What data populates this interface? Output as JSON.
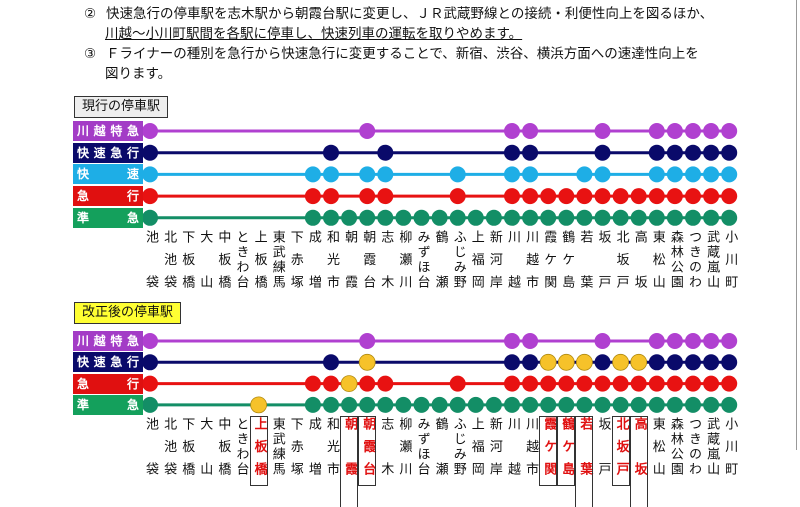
{
  "document": {
    "paragraphs": [
      {
        "num": "②",
        "lines": [
          "快速急行の停車駅を志木駅から朝霞台駅に変更し、ＪＲ武蔵野線との接続・利便性向上を図るほか、",
          "川越～小川町駅間を各駅に停車し、快速列車の運転を取りやめます。"
        ]
      },
      {
        "num": "③",
        "lines": [
          "Ｆライナーの種別を急行から快速急行に変更することで、新宿、渋谷、横浜方面への速達性向上を",
          "図ります。"
        ]
      }
    ]
  },
  "stations": [
    "池袋",
    "北池袋",
    "下板橋",
    "大山",
    "中板橋",
    "ときわ台",
    "上板橋",
    "東武練馬",
    "下赤塚",
    "成増",
    "和光市",
    "朝霞",
    "朝霞台",
    "志木",
    "柳瀬川",
    "みずほ台",
    "鶴瀬",
    "ふじみ野",
    "上福岡",
    "新河岸",
    "川越",
    "川越市",
    "霞ケ関",
    "鶴ケ島",
    "若葉",
    "坂戸",
    "北坂戸",
    "高坂",
    "東松山",
    "森林公園",
    "つきのわ",
    "武蔵嵐山",
    "小川町"
  ],
  "colors": {
    "new_stop": "#f6c22a",
    "highlight_text": "#e01010"
  },
  "current": {
    "title": "現行の停車駅",
    "services": [
      {
        "name": "川越特急",
        "chars": [
          "川",
          "越",
          "特",
          "急"
        ],
        "color": "#b040d0",
        "label_bg": "#a33cc6",
        "stops": [
          0,
          12,
          20,
          21,
          25,
          28,
          29,
          30,
          31,
          32
        ]
      },
      {
        "name": "快速急行",
        "chars": [
          "快",
          "速",
          "急",
          "行"
        ],
        "color": "#0a0a6a",
        "label_bg": "#0a0a6a",
        "stops": [
          0,
          10,
          13,
          20,
          21,
          25,
          28,
          29,
          30,
          31,
          32
        ]
      },
      {
        "name": "快速",
        "chars": [
          "快",
          "速"
        ],
        "color": "#1eaee6",
        "label_bg": "#1eaee6",
        "stops": [
          0,
          9,
          10,
          12,
          13,
          17,
          20,
          21,
          24,
          25,
          28,
          29,
          30,
          31,
          32
        ]
      },
      {
        "name": "急行",
        "chars": [
          "急",
          "行"
        ],
        "color": "#e81212",
        "label_bg": "#e01010",
        "stops": [
          0,
          9,
          10,
          12,
          13,
          17,
          20,
          21,
          22,
          23,
          24,
          25,
          26,
          27,
          28,
          29,
          30,
          31,
          32
        ]
      },
      {
        "name": "準急",
        "chars": [
          "準",
          "急"
        ],
        "color": "#138e66",
        "label_bg": "#14a05c",
        "stops": [
          0,
          9,
          10,
          11,
          12,
          13,
          14,
          15,
          16,
          17,
          18,
          19,
          20,
          21,
          22,
          23,
          24,
          25,
          26,
          27,
          28,
          29,
          30,
          31,
          32
        ]
      }
    ]
  },
  "revised": {
    "title": "改正後の停車駅",
    "highlighted_stations": [
      6,
      11,
      12,
      22,
      23,
      24,
      26,
      27
    ],
    "services": [
      {
        "name": "川越特急",
        "chars": [
          "川",
          "越",
          "特",
          "急"
        ],
        "color": "#b040d0",
        "label_bg": "#a33cc6",
        "stops": [
          0,
          12,
          20,
          21,
          25,
          28,
          29,
          30,
          31,
          32
        ],
        "new_stops": []
      },
      {
        "name": "快速急行",
        "chars": [
          "快",
          "速",
          "急",
          "行"
        ],
        "color": "#0a0a6a",
        "label_bg": "#0a0a6a",
        "stops": [
          0,
          10,
          12,
          20,
          21,
          22,
          23,
          24,
          25,
          26,
          27,
          28,
          29,
          30,
          31,
          32
        ],
        "new_stops": [
          12,
          22,
          23,
          24,
          26,
          27
        ]
      },
      {
        "name": "急行",
        "chars": [
          "急",
          "行"
        ],
        "color": "#e81212",
        "label_bg": "#e01010",
        "stops": [
          0,
          9,
          10,
          11,
          12,
          13,
          17,
          20,
          21,
          22,
          23,
          24,
          25,
          26,
          27,
          28,
          29,
          30,
          31,
          32
        ],
        "new_stops": [
          11
        ]
      },
      {
        "name": "準急",
        "chars": [
          "準",
          "急"
        ],
        "color": "#138e66",
        "label_bg": "#14a05c",
        "stops": [
          0,
          6,
          9,
          10,
          11,
          12,
          13,
          14,
          15,
          16,
          17,
          18,
          19,
          20,
          21,
          22,
          23,
          24,
          25,
          26,
          27,
          28,
          29,
          30,
          31,
          32
        ],
        "new_stops": [
          6
        ]
      }
    ]
  }
}
